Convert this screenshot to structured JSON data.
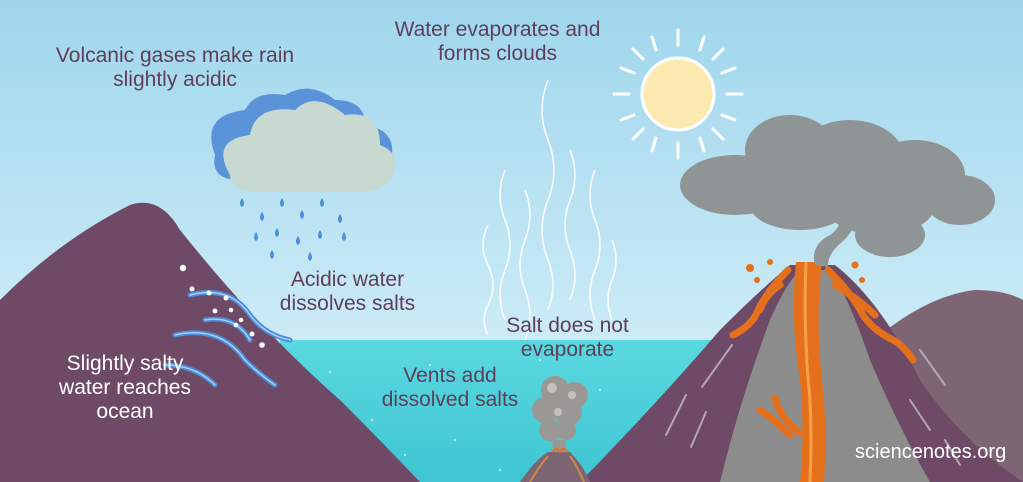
{
  "labels": {
    "volcanic_gases": [
      "Volcanic gases make rain",
      "slightly acidic"
    ],
    "evaporation": [
      "Water evaporates and",
      "forms clouds"
    ],
    "acidic_water": [
      "Acidic water",
      "dissolves salts"
    ],
    "salt": [
      "Salt does not",
      "evaporate"
    ],
    "vents": [
      "Vents add",
      "dissolved salts"
    ],
    "runoff": [
      "Slightly salty",
      "water reaches",
      "ocean"
    ]
  },
  "credit": "sciencenotes.org",
  "colors": {
    "sky_top": "#9fd6ec",
    "sky_bottom": "#d9f3fb",
    "ocean": "#4fd4dd",
    "mountain": "#6e4a66",
    "volcano_slope": "#8d8c8c",
    "lava": "#e5701c",
    "smoke": "#8e9594",
    "cloud": "#c8d9d1",
    "cloud_back": "#5a93d8",
    "rain": "#4a8fd8",
    "sun": "#fbe9b0",
    "text": "#5f3e58"
  },
  "icons": [
    "sun-icon",
    "rain-cloud-icon",
    "smoke-cloud-icon",
    "volcano-icon",
    "vent-icon"
  ]
}
